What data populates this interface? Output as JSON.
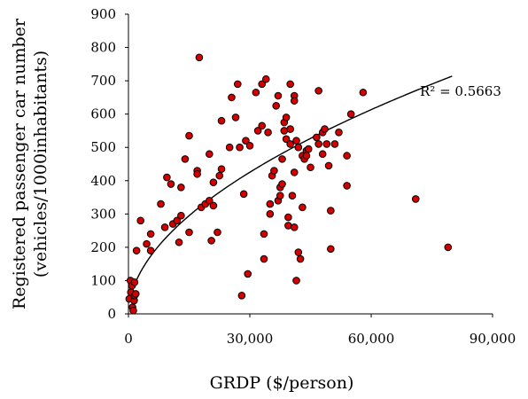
{
  "chart_data": {
    "type": "scatter",
    "xlabel": "GRDP ($/person)",
    "ylabel_line1": "Registered passenger car number",
    "ylabel_line2": "(vehicles/1000inhabitants)",
    "annotation": "R² = 0.5663",
    "xlim": [
      0,
      90000
    ],
    "ylim": [
      0,
      900
    ],
    "xticks": [
      0,
      30000,
      60000,
      90000
    ],
    "xtick_labels": [
      "0",
      "30,000",
      "60,000",
      "90,000"
    ],
    "yticks": [
      0,
      100,
      200,
      300,
      400,
      500,
      600,
      700,
      800,
      900
    ],
    "ytick_labels": [
      "0",
      "100",
      "200",
      "300",
      "400",
      "500",
      "600",
      "700",
      "800",
      "900"
    ],
    "grid": false,
    "marker_color": "#d40000",
    "marker_edge": "#000000",
    "trendline": {
      "type": "power",
      "a": 1.84,
      "b": 0.528,
      "x_start": 300,
      "x_end": 80000
    },
    "points": [
      [
        200,
        45
      ],
      [
        500,
        100
      ],
      [
        600,
        65
      ],
      [
        900,
        85
      ],
      [
        1000,
        20
      ],
      [
        1200,
        10
      ],
      [
        1400,
        40
      ],
      [
        1500,
        55
      ],
      [
        1500,
        95
      ],
      [
        1800,
        60
      ],
      [
        2000,
        190
      ],
      [
        3000,
        280
      ],
      [
        4500,
        210
      ],
      [
        5500,
        240
      ],
      [
        5500,
        190
      ],
      [
        8000,
        330
      ],
      [
        9000,
        260
      ],
      [
        9500,
        410
      ],
      [
        10500,
        390
      ],
      [
        11000,
        270
      ],
      [
        12000,
        280
      ],
      [
        12500,
        215
      ],
      [
        13000,
        380
      ],
      [
        13000,
        295
      ],
      [
        14000,
        465
      ],
      [
        15000,
        535
      ],
      [
        15000,
        245
      ],
      [
        17000,
        430
      ],
      [
        17000,
        420
      ],
      [
        17500,
        770
      ],
      [
        18000,
        320
      ],
      [
        19000,
        330
      ],
      [
        20000,
        480
      ],
      [
        20000,
        340
      ],
      [
        20500,
        220
      ],
      [
        21000,
        395
      ],
      [
        21000,
        325
      ],
      [
        22000,
        245
      ],
      [
        22500,
        415
      ],
      [
        23000,
        435
      ],
      [
        23000,
        580
      ],
      [
        25000,
        500
      ],
      [
        25500,
        650
      ],
      [
        26500,
        590
      ],
      [
        27000,
        690
      ],
      [
        27500,
        500
      ],
      [
        28000,
        55
      ],
      [
        28500,
        360
      ],
      [
        29000,
        520
      ],
      [
        29500,
        120
      ],
      [
        30000,
        505
      ],
      [
        31500,
        665
      ],
      [
        32000,
        550
      ],
      [
        33000,
        690
      ],
      [
        33000,
        565
      ],
      [
        33500,
        165
      ],
      [
        33500,
        240
      ],
      [
        34000,
        705
      ],
      [
        34500,
        545
      ],
      [
        35000,
        330
      ],
      [
        35000,
        300
      ],
      [
        35500,
        415
      ],
      [
        36000,
        430
      ],
      [
        36500,
        625
      ],
      [
        37000,
        655
      ],
      [
        37000,
        340
      ],
      [
        37500,
        355
      ],
      [
        37500,
        380
      ],
      [
        38000,
        465
      ],
      [
        38000,
        390
      ],
      [
        38500,
        550
      ],
      [
        38500,
        575
      ],
      [
        39000,
        590
      ],
      [
        39000,
        525
      ],
      [
        39500,
        290
      ],
      [
        39500,
        265
      ],
      [
        40000,
        555
      ],
      [
        40000,
        510
      ],
      [
        40000,
        690
      ],
      [
        40500,
        355
      ],
      [
        41000,
        655
      ],
      [
        41000,
        640
      ],
      [
        41000,
        260
      ],
      [
        41000,
        425
      ],
      [
        41500,
        520
      ],
      [
        41500,
        100
      ],
      [
        42000,
        500
      ],
      [
        42000,
        185
      ],
      [
        42500,
        165
      ],
      [
        43000,
        475
      ],
      [
        43000,
        320
      ],
      [
        43500,
        465
      ],
      [
        44000,
        490
      ],
      [
        44000,
        475
      ],
      [
        44500,
        495
      ],
      [
        45000,
        440
      ],
      [
        46500,
        530
      ],
      [
        47000,
        670
      ],
      [
        47000,
        510
      ],
      [
        48000,
        545
      ],
      [
        48000,
        480
      ],
      [
        48500,
        555
      ],
      [
        49000,
        510
      ],
      [
        49500,
        445
      ],
      [
        50000,
        310
      ],
      [
        50000,
        195
      ],
      [
        51000,
        510
      ],
      [
        52000,
        545
      ],
      [
        54000,
        475
      ],
      [
        54000,
        385
      ],
      [
        55000,
        600
      ],
      [
        58000,
        665
      ],
      [
        71000,
        345
      ],
      [
        79000,
        200
      ]
    ]
  }
}
